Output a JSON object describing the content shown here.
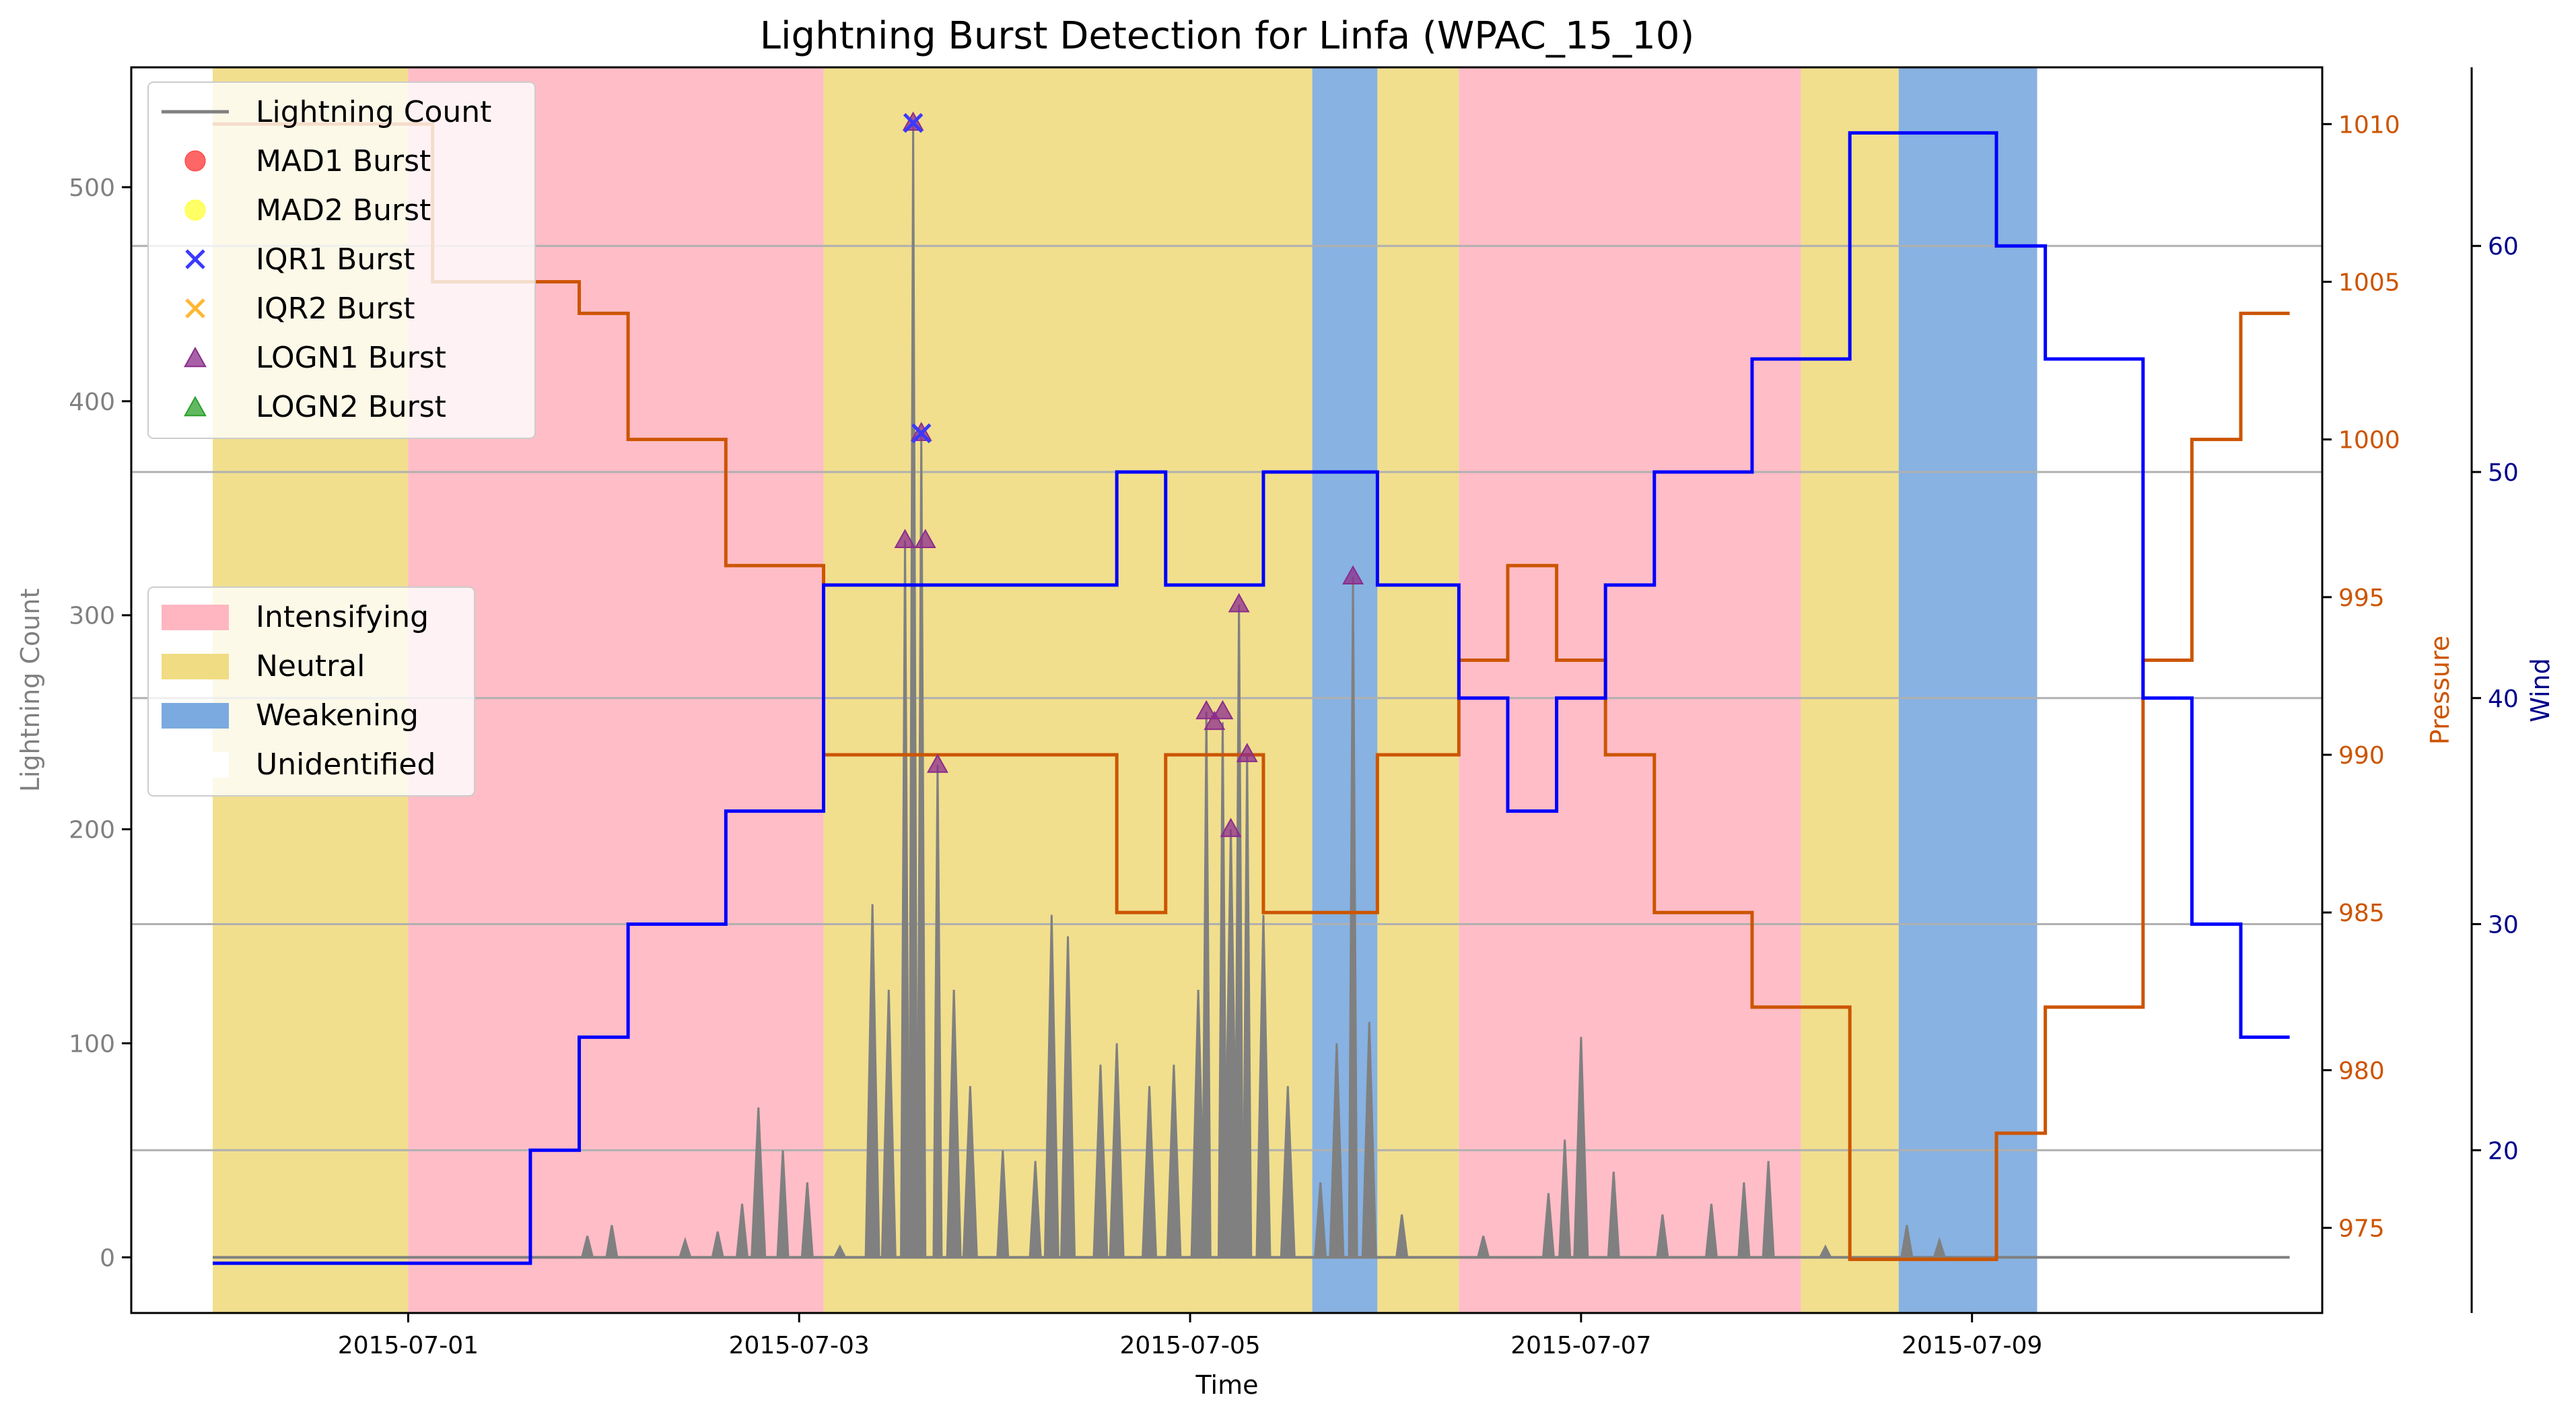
{
  "chart_data": {
    "type": "line",
    "title": "Lightning Burst Detection for Linfa (WPAC_15_10)",
    "xlabel": "Time",
    "ylabel_left": "Lightning Count",
    "ylabel_pressure": "Pressure",
    "ylabel_wind": "Wind",
    "x_ticks": [
      "2015-07-01",
      "2015-07-03",
      "2015-07-05",
      "2015-07-07",
      "2015-07-09"
    ],
    "x_range": [
      "2015-06-29T14:00",
      "2015-07-10T19:00"
    ],
    "y_left_range": [
      -26,
      556
    ],
    "y_left_ticks": [
      0,
      100,
      200,
      300,
      400,
      500
    ],
    "y_pressure_range": [
      972.3,
      1011.8
    ],
    "y_pressure_ticks": [
      975,
      980,
      985,
      990,
      995,
      1000,
      1005,
      1010
    ],
    "y_wind_range": [
      12.8,
      67.9
    ],
    "y_wind_ticks": [
      20,
      30,
      40,
      50,
      60
    ],
    "grid": "horizontal lines at wind ticks",
    "colors": {
      "lightning": "#808080",
      "pressure": "#cc5500",
      "wind": "#0000ff",
      "intensifying": "#ffb6c1",
      "neutral": "#f0dc82",
      "weakening": "#7aaadf",
      "unidentified": "#ffffff",
      "logn1": "#8b2c8b",
      "iqr1": "#3a3aff",
      "mad1": "#ff3333",
      "mad2": "#ffff33",
      "iqr2": "#ffb733",
      "logn2": "#2ca02c"
    },
    "legend_series": {
      "position": "top-left",
      "entries": [
        {
          "label": "Lightning Count",
          "marker": "line",
          "color": "#808080"
        },
        {
          "label": "MAD1 Burst",
          "marker": "circle",
          "color": "#ff3333"
        },
        {
          "label": "MAD2 Burst",
          "marker": "circle",
          "color": "#ffff33"
        },
        {
          "label": "IQR1 Burst",
          "marker": "x",
          "color": "#3a3aff"
        },
        {
          "label": "IQR2 Burst",
          "marker": "x",
          "color": "#ffb733"
        },
        {
          "label": "LOGN1 Burst",
          "marker": "triangle",
          "color": "#8b2c8b"
        },
        {
          "label": "LOGN2 Burst",
          "marker": "triangle",
          "color": "#2ca02c"
        }
      ]
    },
    "legend_phases": {
      "position": "center-left",
      "entries": [
        {
          "label": "Intensifying",
          "color": "#ffb6c1"
        },
        {
          "label": "Neutral",
          "color": "#f0dc82"
        },
        {
          "label": "Weakening",
          "color": "#7aaadf"
        },
        {
          "label": "Unidentified",
          "color": "#ffffff"
        }
      ]
    },
    "phases": [
      {
        "start": "2015-06-30T00:00",
        "end": "2015-07-01T00:00",
        "phase": "Neutral"
      },
      {
        "start": "2015-07-01T00:00",
        "end": "2015-07-03T03:00",
        "phase": "Intensifying"
      },
      {
        "start": "2015-07-03T03:00",
        "end": "2015-07-05T15:00",
        "phase": "Neutral"
      },
      {
        "start": "2015-07-05T15:00",
        "end": "2015-07-05T23:00",
        "phase": "Weakening"
      },
      {
        "start": "2015-07-05T23:00",
        "end": "2015-07-06T09:00",
        "phase": "Neutral"
      },
      {
        "start": "2015-07-06T09:00",
        "end": "2015-07-08T03:00",
        "phase": "Intensifying"
      },
      {
        "start": "2015-07-08T03:00",
        "end": "2015-07-08T15:00",
        "phase": "Neutral"
      },
      {
        "start": "2015-07-08T15:00",
        "end": "2015-07-09T08:00",
        "phase": "Weakening"
      }
    ],
    "pressure_steps": [
      [
        "2015-06-30T00:00",
        1010
      ],
      [
        "2015-07-01T03:00",
        1005
      ],
      [
        "2015-07-01T21:00",
        1004
      ],
      [
        "2015-07-02T03:00",
        1000
      ],
      [
        "2015-07-02T15:00",
        996
      ],
      [
        "2015-07-03T03:00",
        990
      ],
      [
        "2015-07-04T15:00",
        985
      ],
      [
        "2015-07-04T21:00",
        990
      ],
      [
        "2015-07-05T09:00",
        985
      ],
      [
        "2015-07-05T23:00",
        990
      ],
      [
        "2015-07-06T09:00",
        993
      ],
      [
        "2015-07-06T15:00",
        996
      ],
      [
        "2015-07-06T21:00",
        993
      ],
      [
        "2015-07-07T03:00",
        990
      ],
      [
        "2015-07-07T09:00",
        985
      ],
      [
        "2015-07-07T21:00",
        982
      ],
      [
        "2015-07-08T09:00",
        974
      ],
      [
        "2015-07-09T03:00",
        978
      ],
      [
        "2015-07-09T09:00",
        982
      ],
      [
        "2015-07-09T21:00",
        993
      ],
      [
        "2015-07-10T03:00",
        1000
      ],
      [
        "2015-07-10T09:00",
        1004
      ],
      [
        "2015-07-10T15:00",
        1004
      ]
    ],
    "wind_steps": [
      [
        "2015-06-30T00:00",
        15
      ],
      [
        "2015-07-01T15:00",
        20
      ],
      [
        "2015-07-01T21:00",
        25
      ],
      [
        "2015-07-02T03:00",
        30
      ],
      [
        "2015-07-02T15:00",
        35
      ],
      [
        "2015-07-03T03:00",
        45
      ],
      [
        "2015-07-04T15:00",
        50
      ],
      [
        "2015-07-04T21:00",
        45
      ],
      [
        "2015-07-05T09:00",
        50
      ],
      [
        "2015-07-05T23:00",
        45
      ],
      [
        "2015-07-06T09:00",
        40
      ],
      [
        "2015-07-06T15:00",
        35
      ],
      [
        "2015-07-06T21:00",
        40
      ],
      [
        "2015-07-07T03:00",
        45
      ],
      [
        "2015-07-07T09:00",
        50
      ],
      [
        "2015-07-07T21:00",
        55
      ],
      [
        "2015-07-08T09:00",
        65
      ],
      [
        "2015-07-09T03:00",
        60
      ],
      [
        "2015-07-09T09:00",
        55
      ],
      [
        "2015-07-09T21:00",
        40
      ],
      [
        "2015-07-10T03:00",
        30
      ],
      [
        "2015-07-10T09:00",
        25
      ],
      [
        "2015-07-10T15:00",
        25
      ]
    ],
    "lightning_peaks": [
      [
        "2015-07-01T22:00",
        10
      ],
      [
        "2015-07-02T01:00",
        15
      ],
      [
        "2015-07-02T10:00",
        8
      ],
      [
        "2015-07-02T14:00",
        12
      ],
      [
        "2015-07-02T17:00",
        25
      ],
      [
        "2015-07-02T19:00",
        70
      ],
      [
        "2015-07-02T22:00",
        50
      ],
      [
        "2015-07-03T01:00",
        35
      ],
      [
        "2015-07-03T05:00",
        5
      ],
      [
        "2015-07-03T09:00",
        165
      ],
      [
        "2015-07-03T11:00",
        125
      ],
      [
        "2015-07-03T13:00",
        335
      ],
      [
        "2015-07-03T14:00",
        530
      ],
      [
        "2015-07-03T15:00",
        385
      ],
      [
        "2015-07-03T17:00",
        230
      ],
      [
        "2015-07-03T19:00",
        125
      ],
      [
        "2015-07-03T21:00",
        80
      ],
      [
        "2015-07-04T01:00",
        50
      ],
      [
        "2015-07-04T05:00",
        45
      ],
      [
        "2015-07-04T07:00",
        160
      ],
      [
        "2015-07-04T09:00",
        150
      ],
      [
        "2015-07-04T13:00",
        90
      ],
      [
        "2015-07-04T15:00",
        100
      ],
      [
        "2015-07-04T19:00",
        80
      ],
      [
        "2015-07-04T22:00",
        90
      ],
      [
        "2015-07-05T01:00",
        125
      ],
      [
        "2015-07-05T02:00",
        255
      ],
      [
        "2015-07-05T04:00",
        250
      ],
      [
        "2015-07-05T05:00",
        200
      ],
      [
        "2015-07-05T06:00",
        305
      ],
      [
        "2015-07-05T07:00",
        235
      ],
      [
        "2015-07-05T09:00",
        160
      ],
      [
        "2015-07-05T12:00",
        80
      ],
      [
        "2015-07-05T16:00",
        35
      ],
      [
        "2015-07-05T18:00",
        100
      ],
      [
        "2015-07-05T20:00",
        318
      ],
      [
        "2015-07-05T22:00",
        110
      ],
      [
        "2015-07-06T02:00",
        20
      ],
      [
        "2015-07-06T12:00",
        10
      ],
      [
        "2015-07-06T20:00",
        30
      ],
      [
        "2015-07-06T22:00",
        55
      ],
      [
        "2015-07-07T00:00",
        103
      ],
      [
        "2015-07-07T04:00",
        40
      ],
      [
        "2015-07-07T10:00",
        20
      ],
      [
        "2015-07-07T16:00",
        25
      ],
      [
        "2015-07-07T20:00",
        35
      ],
      [
        "2015-07-07T23:00",
        45
      ],
      [
        "2015-07-08T06:00",
        5
      ],
      [
        "2015-07-08T16:00",
        15
      ],
      [
        "2015-07-08T20:00",
        8
      ]
    ],
    "bursts": {
      "LOGN1": [
        [
          "2015-07-03T13:00",
          335
        ],
        [
          "2015-07-03T14:00",
          530
        ],
        [
          "2015-07-03T15:00",
          385
        ],
        [
          "2015-07-03T15:30",
          335
        ],
        [
          "2015-07-03T17:00",
          230
        ],
        [
          "2015-07-05T02:00",
          255
        ],
        [
          "2015-07-05T03:00",
          250
        ],
        [
          "2015-07-05T04:00",
          255
        ],
        [
          "2015-07-05T05:00",
          200
        ],
        [
          "2015-07-05T06:00",
          305
        ],
        [
          "2015-07-05T07:00",
          235
        ],
        [
          "2015-07-05T20:00",
          318
        ]
      ],
      "IQR1": [
        [
          "2015-07-03T14:00",
          530
        ],
        [
          "2015-07-03T15:00",
          385
        ]
      ]
    }
  }
}
